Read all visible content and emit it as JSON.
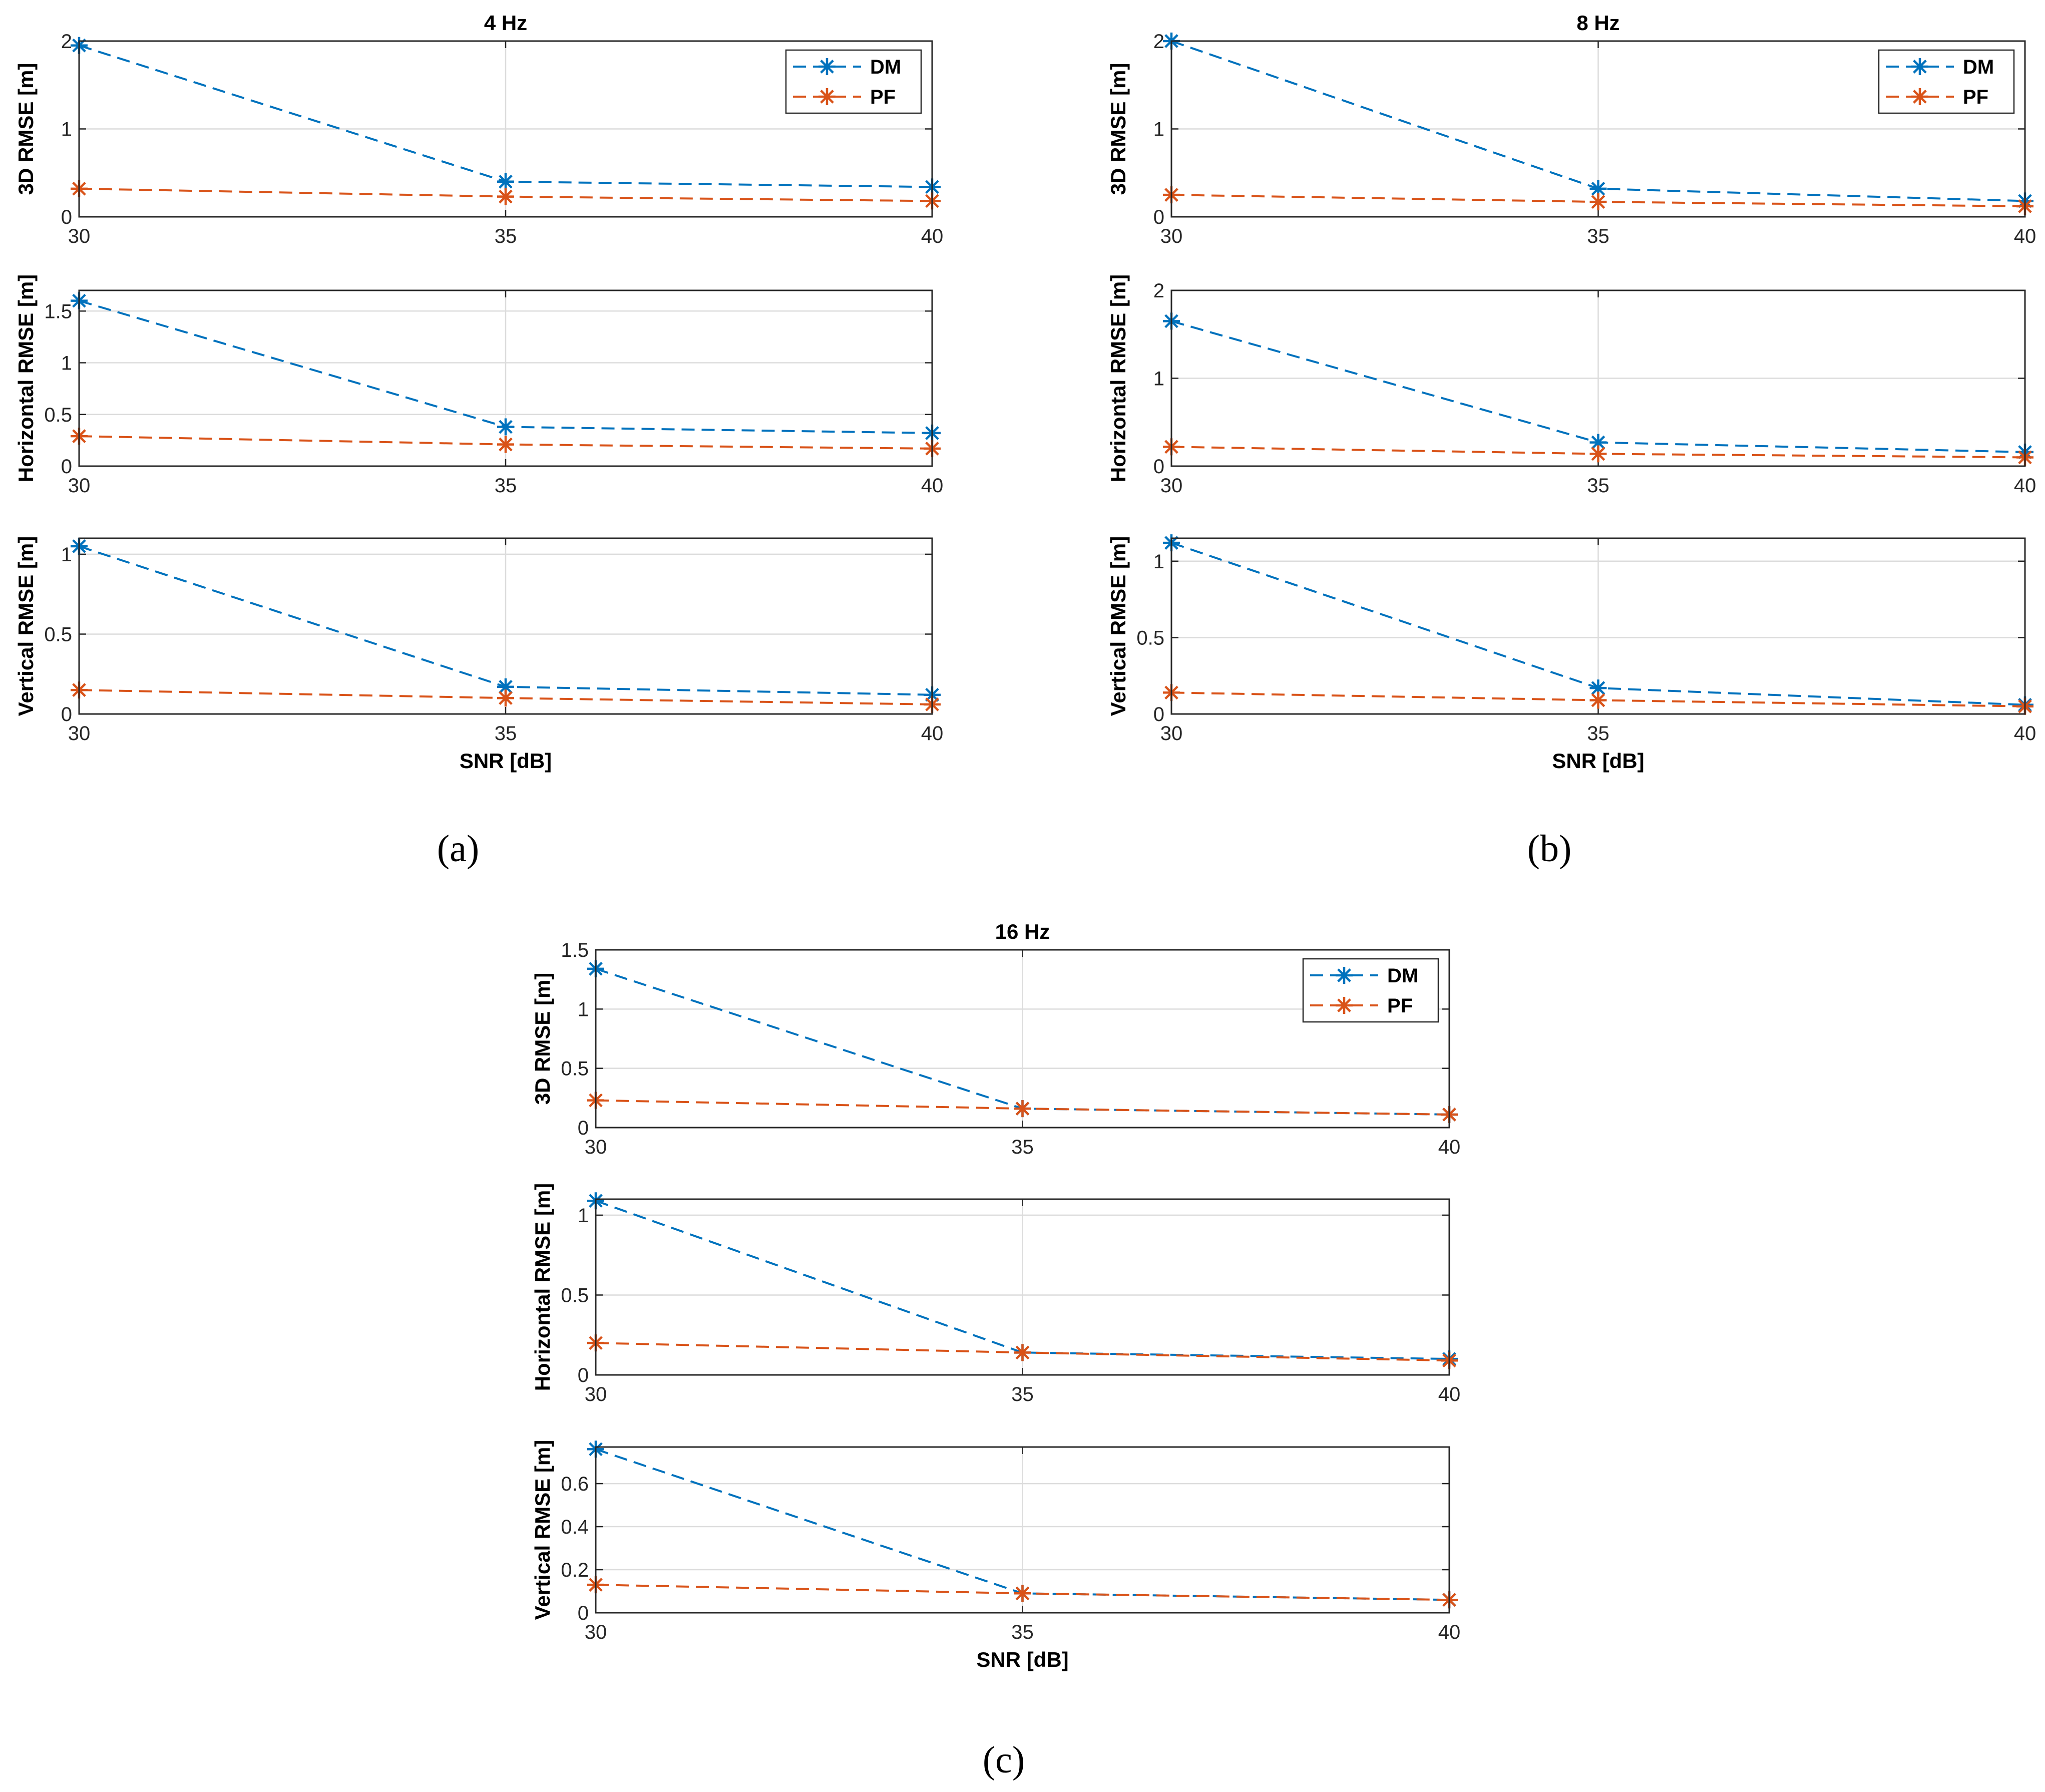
{
  "figures": [
    {
      "label": "a",
      "label_text": "(a)"
    },
    {
      "label": "b",
      "label_text": "(b)"
    },
    {
      "label": "c",
      "label_text": "(c)"
    }
  ],
  "colors": {
    "dm": "#0072BD",
    "pf": "#D95319",
    "grid": "#dcdcdc",
    "axis": "#262626"
  },
  "chart_data": [
    {
      "figure": "a",
      "type": "line",
      "title": "4 Hz",
      "xlabel": "",
      "ylabel": "3D RMSE [m]",
      "x": [
        30,
        35,
        40
      ],
      "xlim": [
        30,
        40
      ],
      "ylim": [
        0,
        2
      ],
      "xticks": [
        "30",
        "35",
        "40"
      ],
      "yticks": [
        0,
        1,
        2
      ],
      "ytick_labels": [
        "0",
        "1",
        "2"
      ],
      "legend": {
        "placement": "top-right",
        "entries": [
          "DM",
          "PF"
        ]
      },
      "series": [
        {
          "name": "DM",
          "values": [
            1.95,
            0.4,
            0.34
          ]
        },
        {
          "name": "PF",
          "values": [
            0.32,
            0.23,
            0.18
          ]
        }
      ]
    },
    {
      "figure": "a",
      "type": "line",
      "title": "",
      "xlabel": "",
      "ylabel": "Horizontal RMSE [m]",
      "x": [
        30,
        35,
        40
      ],
      "xlim": [
        30,
        40
      ],
      "ylim": [
        0,
        1.7
      ],
      "xticks": [
        "30",
        "35",
        "40"
      ],
      "yticks": [
        0,
        0.5,
        1,
        1.5
      ],
      "ytick_labels": [
        "0",
        "0.5",
        "1",
        "1.5"
      ],
      "legend": null,
      "series": [
        {
          "name": "DM",
          "values": [
            1.6,
            0.38,
            0.32
          ]
        },
        {
          "name": "PF",
          "values": [
            0.29,
            0.21,
            0.17
          ]
        }
      ]
    },
    {
      "figure": "a",
      "type": "line",
      "title": "",
      "xlabel": "SNR [dB]",
      "ylabel": "Vertical RMSE [m]",
      "x": [
        30,
        35,
        40
      ],
      "xlim": [
        30,
        40
      ],
      "ylim": [
        0,
        1.1
      ],
      "xticks": [
        "30",
        "35",
        "40"
      ],
      "yticks": [
        0,
        0.5,
        1
      ],
      "ytick_labels": [
        "0",
        "0.5",
        "1"
      ],
      "legend": null,
      "series": [
        {
          "name": "DM",
          "values": [
            1.05,
            0.17,
            0.12
          ]
        },
        {
          "name": "PF",
          "values": [
            0.15,
            0.1,
            0.06
          ]
        }
      ]
    },
    {
      "figure": "b",
      "type": "line",
      "title": "8 Hz",
      "xlabel": "",
      "ylabel": "3D RMSE [m]",
      "x": [
        30,
        35,
        40
      ],
      "xlim": [
        30,
        40
      ],
      "ylim": [
        0,
        2
      ],
      "xticks": [
        "30",
        "35",
        "40"
      ],
      "yticks": [
        0,
        1,
        2
      ],
      "ytick_labels": [
        "0",
        "1",
        "2"
      ],
      "legend": {
        "placement": "top-right",
        "entries": [
          "DM",
          "PF"
        ]
      },
      "series": [
        {
          "name": "DM",
          "values": [
            2.0,
            0.32,
            0.18
          ]
        },
        {
          "name": "PF",
          "values": [
            0.25,
            0.17,
            0.12
          ]
        }
      ]
    },
    {
      "figure": "b",
      "type": "line",
      "title": "",
      "xlabel": "",
      "ylabel": "Horizontal RMSE [m]",
      "x": [
        30,
        35,
        40
      ],
      "xlim": [
        30,
        40
      ],
      "ylim": [
        0,
        2
      ],
      "xticks": [
        "30",
        "35",
        "40"
      ],
      "yticks": [
        0,
        1,
        2
      ],
      "ytick_labels": [
        "0",
        "1",
        "2"
      ],
      "legend": null,
      "series": [
        {
          "name": "DM",
          "values": [
            1.65,
            0.27,
            0.16
          ]
        },
        {
          "name": "PF",
          "values": [
            0.22,
            0.14,
            0.1
          ]
        }
      ]
    },
    {
      "figure": "b",
      "type": "line",
      "title": "",
      "xlabel": "SNR [dB]",
      "ylabel": "Vertical RMSE [m]",
      "x": [
        30,
        35,
        40
      ],
      "xlim": [
        30,
        40
      ],
      "ylim": [
        0,
        1.15
      ],
      "xticks": [
        "30",
        "35",
        "40"
      ],
      "yticks": [
        0,
        0.5,
        1
      ],
      "ytick_labels": [
        "0",
        "0.5",
        "1"
      ],
      "legend": null,
      "series": [
        {
          "name": "DM",
          "values": [
            1.12,
            0.17,
            0.06
          ]
        },
        {
          "name": "PF",
          "values": [
            0.14,
            0.09,
            0.05
          ]
        }
      ]
    },
    {
      "figure": "c",
      "type": "line",
      "title": "16 Hz",
      "xlabel": "",
      "ylabel": "3D RMSE [m]",
      "x": [
        30,
        35,
        40
      ],
      "xlim": [
        30,
        40
      ],
      "ylim": [
        0,
        1.5
      ],
      "xticks": [
        "30",
        "35",
        "40"
      ],
      "yticks": [
        0,
        0.5,
        1,
        1.5
      ],
      "ytick_labels": [
        "0",
        "0.5",
        "1",
        "1.5"
      ],
      "legend": {
        "placement": "top-right",
        "entries": [
          "DM",
          "PF"
        ]
      },
      "series": [
        {
          "name": "DM",
          "values": [
            1.34,
            0.16,
            0.11
          ]
        },
        {
          "name": "PF",
          "values": [
            0.23,
            0.16,
            0.11
          ]
        }
      ]
    },
    {
      "figure": "c",
      "type": "line",
      "title": "",
      "xlabel": "",
      "ylabel": "Horizontal RMSE [m]",
      "x": [
        30,
        35,
        40
      ],
      "xlim": [
        30,
        40
      ],
      "ylim": [
        0,
        1.1
      ],
      "xticks": [
        "30",
        "35",
        "40"
      ],
      "yticks": [
        0,
        0.5,
        1
      ],
      "ytick_labels": [
        "0",
        "0.5",
        "1"
      ],
      "legend": null,
      "series": [
        {
          "name": "DM",
          "values": [
            1.09,
            0.14,
            0.1
          ]
        },
        {
          "name": "PF",
          "values": [
            0.2,
            0.14,
            0.09
          ]
        }
      ]
    },
    {
      "figure": "c",
      "type": "line",
      "title": "",
      "xlabel": "SNR [dB]",
      "ylabel": "Vertical RMSE [m]",
      "x": [
        30,
        35,
        40
      ],
      "xlim": [
        30,
        40
      ],
      "ylim": [
        0,
        0.77
      ],
      "xticks": [
        "30",
        "35",
        "40"
      ],
      "yticks": [
        0,
        0.2,
        0.4,
        0.6
      ],
      "ytick_labels": [
        "0",
        "0.2",
        "0.4",
        "0.6"
      ],
      "legend": null,
      "series": [
        {
          "name": "DM",
          "values": [
            0.76,
            0.09,
            0.06
          ]
        },
        {
          "name": "PF",
          "values": [
            0.13,
            0.09,
            0.06
          ]
        }
      ]
    }
  ]
}
